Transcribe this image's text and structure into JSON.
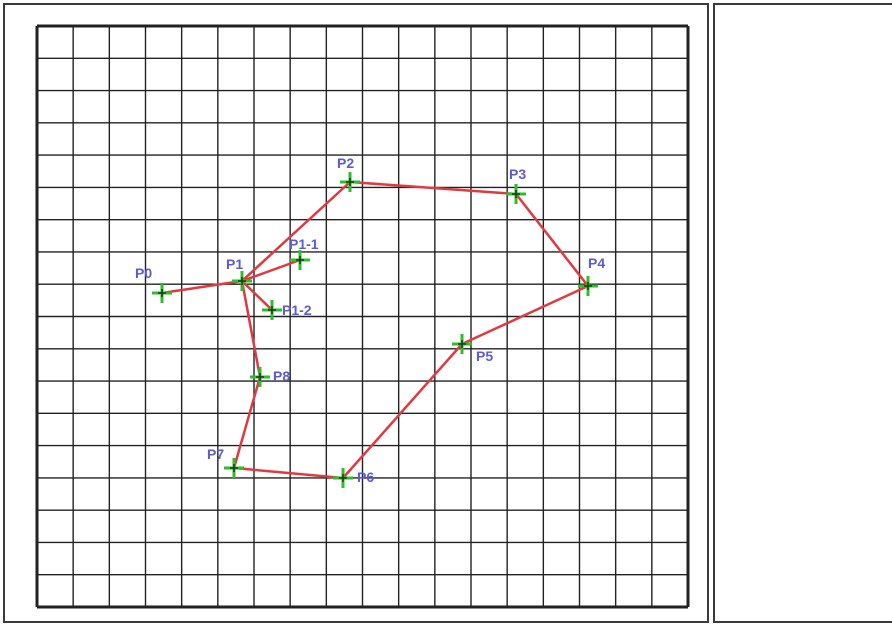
{
  "graph": {
    "nodes": [
      {
        "id": "P0",
        "label": "P0"
      },
      {
        "id": "P1",
        "label": "P1"
      },
      {
        "id": "P1-1",
        "label": "P1-1"
      },
      {
        "id": "P1-2",
        "label": "P1-2"
      },
      {
        "id": "P2",
        "label": "P2"
      },
      {
        "id": "P3",
        "label": "P3"
      },
      {
        "id": "P4",
        "label": "P4"
      },
      {
        "id": "P5",
        "label": "P5"
      },
      {
        "id": "P6",
        "label": "P6"
      },
      {
        "id": "P7",
        "label": "P7"
      },
      {
        "id": "P8",
        "label": "P8"
      }
    ],
    "edges": [
      [
        "P0",
        "P1"
      ],
      [
        "P1",
        "P1-1"
      ],
      [
        "P1",
        "P1-2"
      ],
      [
        "P1",
        "P2"
      ],
      [
        "P2",
        "P3"
      ],
      [
        "P3",
        "P4"
      ],
      [
        "P4",
        "P5"
      ],
      [
        "P5",
        "P6"
      ],
      [
        "P6",
        "P7"
      ],
      [
        "P7",
        "P8"
      ],
      [
        "P8",
        "P1"
      ]
    ],
    "colors": {
      "edge": "#e0393f",
      "marker": "#2bbf2b",
      "label": "#5b5bd6",
      "grid": "#222222"
    }
  }
}
